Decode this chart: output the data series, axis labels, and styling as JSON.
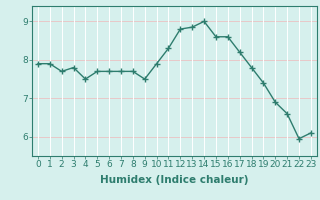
{
  "x": [
    0,
    1,
    2,
    3,
    4,
    5,
    6,
    7,
    8,
    9,
    10,
    11,
    12,
    13,
    14,
    15,
    16,
    17,
    18,
    19,
    20,
    21,
    22,
    23
  ],
  "y": [
    7.9,
    7.9,
    7.7,
    7.8,
    7.5,
    7.7,
    7.7,
    7.7,
    7.7,
    7.5,
    7.9,
    8.3,
    8.8,
    8.85,
    9.0,
    8.6,
    8.6,
    8.2,
    7.8,
    7.4,
    6.9,
    6.6,
    5.95,
    6.1
  ],
  "line_color": "#2e7d6e",
  "marker": "+",
  "markersize": 4,
  "linewidth": 1.0,
  "xlabel": "Humidex (Indice chaleur)",
  "ylim": [
    5.5,
    9.4
  ],
  "xlim": [
    -0.5,
    23.5
  ],
  "yticks": [
    6,
    7,
    8,
    9
  ],
  "xticks": [
    0,
    1,
    2,
    3,
    4,
    5,
    6,
    7,
    8,
    9,
    10,
    11,
    12,
    13,
    14,
    15,
    16,
    17,
    18,
    19,
    20,
    21,
    22,
    23
  ],
  "bg_color": "#d6f0ed",
  "grid_color_h": "#e8c8c8",
  "grid_color_v": "#ffffff",
  "axis_color": "#2e7d6e",
  "tick_label_size": 6.5,
  "xlabel_size": 7.5,
  "spine_color": "#2e7d6e"
}
